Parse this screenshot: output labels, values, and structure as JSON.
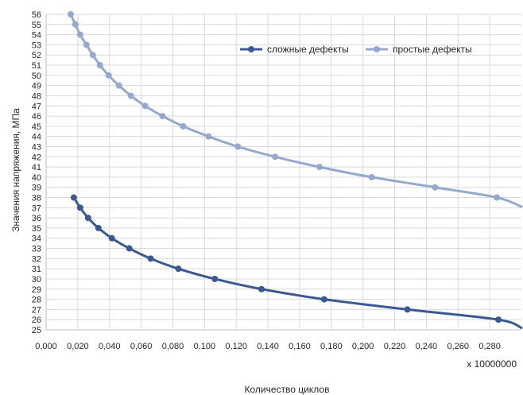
{
  "chart_data": {
    "type": "line",
    "title": "",
    "xlabel": "Количество циклов",
    "ylabel": "Значения напряжения, МПа",
    "x_multiplier_label": "x 10000000",
    "xlim": [
      0.0,
      0.3
    ],
    "ylim": [
      25,
      56
    ],
    "x_ticks": [
      "0,000",
      "0,020",
      "0,040",
      "0,060",
      "0,080",
      "0,100",
      "0,120",
      "0,140",
      "0,160",
      "0,180",
      "0,200",
      "0,220",
      "0,240",
      "0,260",
      "0,280"
    ],
    "x_tick_values": [
      0.0,
      0.02,
      0.04,
      0.06,
      0.08,
      0.1,
      0.12,
      0.14,
      0.16,
      0.18,
      0.2,
      0.22,
      0.24,
      0.26,
      0.28
    ],
    "y_ticks": [
      "25",
      "26",
      "27",
      "28",
      "29",
      "30",
      "31",
      "32",
      "33",
      "34",
      "35",
      "36",
      "37",
      "38",
      "39",
      "40",
      "41",
      "42",
      "43",
      "44",
      "45",
      "46",
      "47",
      "48",
      "49",
      "50",
      "51",
      "52",
      "53",
      "54",
      "55",
      "56"
    ],
    "y_tick_values": [
      25,
      26,
      27,
      28,
      29,
      30,
      31,
      32,
      33,
      34,
      35,
      36,
      37,
      38,
      39,
      40,
      41,
      42,
      43,
      44,
      45,
      46,
      47,
      48,
      49,
      50,
      51,
      52,
      53,
      54,
      55,
      56
    ],
    "grid": true,
    "legend_position": "top-right",
    "series": [
      {
        "name": "сложные дефекты",
        "color": "#3a5894",
        "points": [
          {
            "x": 0.0175,
            "y": 38
          },
          {
            "x": 0.0215,
            "y": 37
          },
          {
            "x": 0.0265,
            "y": 36
          },
          {
            "x": 0.033,
            "y": 35
          },
          {
            "x": 0.0415,
            "y": 34
          },
          {
            "x": 0.0525,
            "y": 33
          },
          {
            "x": 0.066,
            "y": 32
          },
          {
            "x": 0.0835,
            "y": 31
          },
          {
            "x": 0.1065,
            "y": 30
          },
          {
            "x": 0.136,
            "y": 29
          },
          {
            "x": 0.1755,
            "y": 28
          },
          {
            "x": 0.228,
            "y": 27
          },
          {
            "x": 0.2855,
            "y": 26
          },
          {
            "x": 0.3,
            "y": 25.2
          }
        ]
      },
      {
        "name": "простые дефекты",
        "color": "#95a9d0",
        "points": [
          {
            "x": 0.0155,
            "y": 56
          },
          {
            "x": 0.0185,
            "y": 55
          },
          {
            "x": 0.0215,
            "y": 54
          },
          {
            "x": 0.0255,
            "y": 53
          },
          {
            "x": 0.0295,
            "y": 52
          },
          {
            "x": 0.034,
            "y": 51
          },
          {
            "x": 0.0395,
            "y": 50
          },
          {
            "x": 0.046,
            "y": 49
          },
          {
            "x": 0.0535,
            "y": 48
          },
          {
            "x": 0.0625,
            "y": 47
          },
          {
            "x": 0.0735,
            "y": 46
          },
          {
            "x": 0.0865,
            "y": 45
          },
          {
            "x": 0.1025,
            "y": 44
          },
          {
            "x": 0.121,
            "y": 43
          },
          {
            "x": 0.1445,
            "y": 42
          },
          {
            "x": 0.1725,
            "y": 41
          },
          {
            "x": 0.2055,
            "y": 40
          },
          {
            "x": 0.2455,
            "y": 39
          },
          {
            "x": 0.2845,
            "y": 38
          },
          {
            "x": 0.3,
            "y": 37.1
          }
        ]
      }
    ]
  }
}
